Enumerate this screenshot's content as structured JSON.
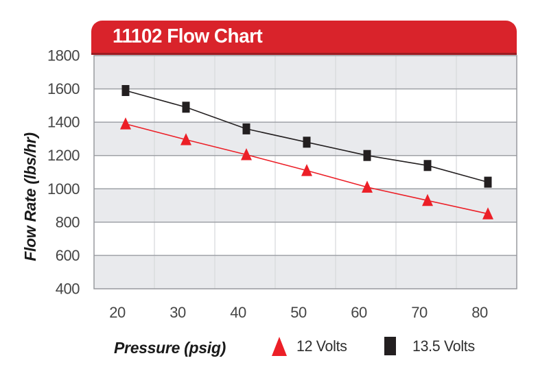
{
  "banner": {
    "title": "11102 Flow Chart",
    "bg_color": "#d9232b",
    "accent_color": "#9c1b21",
    "text_color": "#ffffff"
  },
  "chart_data": {
    "type": "line",
    "title": "11102 Flow Chart",
    "xlabel": "Pressure (psig)",
    "ylabel": "Flow Rate (lbs/hr)",
    "categories": [
      20,
      30,
      40,
      50,
      60,
      70,
      80
    ],
    "series": [
      {
        "name": "12 Volts",
        "marker": "triangle",
        "color": "#ec1f27",
        "values": [
          1390,
          1295,
          1205,
          1110,
          1010,
          930,
          850
        ]
      },
      {
        "name": "13.5 Volts",
        "marker": "square",
        "color": "#231f20",
        "values": [
          1590,
          1490,
          1360,
          1280,
          1200,
          1140,
          1040
        ]
      }
    ],
    "y_ticks": [
      1800,
      1600,
      1400,
      1200,
      1000,
      800,
      600,
      400
    ],
    "ylim": [
      400,
      1800
    ],
    "grid": "horizontal-and-vertical",
    "legend_position": "bottom",
    "band_colors": [
      "#e9eaed",
      "#ffffff"
    ],
    "h_gridline_color": "#9ea1a6",
    "v_gridline_color": "#d8dadd",
    "border_color": "#97999d",
    "tick_text_color": "#454545"
  },
  "legend": {
    "items": [
      {
        "label": "12 Volts",
        "marker": "triangle",
        "color": "#ec1f27"
      },
      {
        "label": "13.5 Volts",
        "marker": "square",
        "color": "#231f20"
      }
    ]
  }
}
